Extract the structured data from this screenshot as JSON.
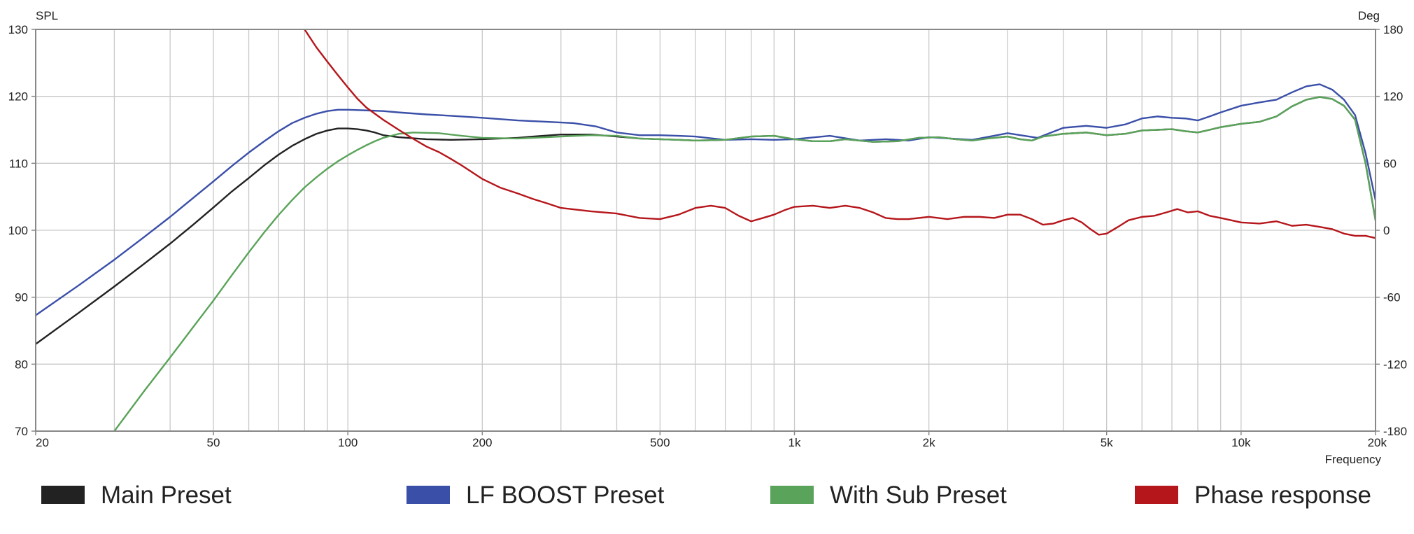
{
  "chart_data": {
    "type": "line",
    "title": "",
    "xlabel": "Frequency",
    "ylabel": "SPL",
    "y2label": "Deg",
    "x_scale": "log",
    "xlim": [
      20,
      20000
    ],
    "ylim": [
      70,
      130
    ],
    "y2lim": [
      -180,
      180
    ],
    "grid": true,
    "legend_position": "bottom",
    "x_ticks": [
      {
        "value": 20,
        "label": "20"
      },
      {
        "value": 50,
        "label": "50"
      },
      {
        "value": 100,
        "label": "100"
      },
      {
        "value": 200,
        "label": "200"
      },
      {
        "value": 500,
        "label": "500"
      },
      {
        "value": 1000,
        "label": "1k"
      },
      {
        "value": 2000,
        "label": "2k"
      },
      {
        "value": 5000,
        "label": "5k"
      },
      {
        "value": 10000,
        "label": "10k"
      },
      {
        "value": 20000,
        "label": "20k"
      }
    ],
    "y_ticks": [
      {
        "value": 70,
        "label": "70"
      },
      {
        "value": 80,
        "label": "80"
      },
      {
        "value": 90,
        "label": "90"
      },
      {
        "value": 100,
        "label": "100"
      },
      {
        "value": 110,
        "label": "110"
      },
      {
        "value": 120,
        "label": "120"
      },
      {
        "value": 130,
        "label": "130"
      }
    ],
    "y2_ticks": [
      {
        "value": -180,
        "label": "-180"
      },
      {
        "value": -120,
        "label": "-120"
      },
      {
        "value": -60,
        "label": "-60"
      },
      {
        "value": 0,
        "label": "0"
      },
      {
        "value": 60,
        "label": "60"
      },
      {
        "value": 120,
        "label": "120"
      },
      {
        "value": 180,
        "label": "180"
      }
    ],
    "series": [
      {
        "name": "Main Preset",
        "color": "#222222",
        "axis": "left",
        "points": [
          [
            20,
            83.0
          ],
          [
            25,
            87.7
          ],
          [
            30,
            91.6
          ],
          [
            35,
            95.0
          ],
          [
            40,
            98.0
          ],
          [
            45,
            100.8
          ],
          [
            50,
            103.4
          ],
          [
            55,
            105.8
          ],
          [
            60,
            107.8
          ],
          [
            65,
            109.7
          ],
          [
            70,
            111.3
          ],
          [
            75,
            112.6
          ],
          [
            80,
            113.6
          ],
          [
            85,
            114.4
          ],
          [
            90,
            114.9
          ],
          [
            95,
            115.2
          ],
          [
            100,
            115.2
          ],
          [
            105,
            115.1
          ],
          [
            110,
            114.9
          ],
          [
            115,
            114.6
          ],
          [
            120,
            114.2
          ],
          [
            130,
            113.9
          ],
          [
            150,
            113.6
          ],
          [
            170,
            113.5
          ],
          [
            200,
            113.6
          ],
          [
            240,
            113.8
          ],
          [
            260,
            114.0
          ],
          [
            300,
            114.3
          ],
          [
            350,
            114.3
          ],
          [
            400,
            114.0
          ],
          [
            450,
            113.7
          ],
          [
            500,
            113.6
          ],
          [
            550,
            113.5
          ],
          [
            600,
            113.4
          ],
          [
            700,
            113.5
          ],
          [
            800,
            114.0
          ],
          [
            900,
            114.1
          ],
          [
            1000,
            113.6
          ],
          [
            1100,
            113.3
          ],
          [
            1200,
            113.3
          ],
          [
            1300,
            113.6
          ],
          [
            1500,
            113.2
          ],
          [
            1700,
            113.3
          ],
          [
            1900,
            113.8
          ],
          [
            2100,
            113.9
          ],
          [
            2300,
            113.6
          ],
          [
            2500,
            113.4
          ],
          [
            2700,
            113.7
          ],
          [
            3000,
            114.0
          ],
          [
            3200,
            113.6
          ],
          [
            3400,
            113.4
          ],
          [
            3600,
            114.0
          ],
          [
            4000,
            114.4
          ],
          [
            4500,
            114.6
          ],
          [
            5000,
            114.2
          ],
          [
            5500,
            114.4
          ],
          [
            6000,
            114.9
          ],
          [
            6500,
            115.0
          ],
          [
            7000,
            115.1
          ],
          [
            7500,
            114.8
          ],
          [
            8000,
            114.6
          ],
          [
            8500,
            115.0
          ],
          [
            9000,
            115.4
          ],
          [
            10000,
            115.9
          ],
          [
            11000,
            116.2
          ],
          [
            12000,
            117.0
          ],
          [
            13000,
            118.5
          ],
          [
            14000,
            119.5
          ],
          [
            15000,
            119.9
          ],
          [
            16000,
            119.6
          ],
          [
            17000,
            118.6
          ],
          [
            18000,
            116.5
          ],
          [
            19000,
            110.0
          ],
          [
            20000,
            101.5
          ]
        ]
      },
      {
        "name": "LF BOOST Preset",
        "color": "#3a4fa8",
        "axis": "left",
        "points": [
          [
            20,
            87.3
          ],
          [
            25,
            91.8
          ],
          [
            30,
            95.6
          ],
          [
            35,
            99.0
          ],
          [
            40,
            102.0
          ],
          [
            45,
            104.8
          ],
          [
            50,
            107.3
          ],
          [
            55,
            109.6
          ],
          [
            60,
            111.6
          ],
          [
            65,
            113.3
          ],
          [
            70,
            114.8
          ],
          [
            75,
            116.0
          ],
          [
            80,
            116.8
          ],
          [
            85,
            117.4
          ],
          [
            90,
            117.8
          ],
          [
            95,
            118.0
          ],
          [
            100,
            118.0
          ],
          [
            110,
            117.9
          ],
          [
            120,
            117.8
          ],
          [
            130,
            117.6
          ],
          [
            150,
            117.3
          ],
          [
            170,
            117.1
          ],
          [
            200,
            116.8
          ],
          [
            240,
            116.4
          ],
          [
            280,
            116.2
          ],
          [
            320,
            116.0
          ],
          [
            360,
            115.5
          ],
          [
            400,
            114.6
          ],
          [
            450,
            114.2
          ],
          [
            500,
            114.2
          ],
          [
            550,
            114.1
          ],
          [
            600,
            114.0
          ],
          [
            700,
            113.5
          ],
          [
            800,
            113.6
          ],
          [
            900,
            113.5
          ],
          [
            1000,
            113.6
          ],
          [
            1200,
            114.1
          ],
          [
            1400,
            113.4
          ],
          [
            1600,
            113.6
          ],
          [
            1800,
            113.4
          ],
          [
            2000,
            113.9
          ],
          [
            2500,
            113.5
          ],
          [
            3000,
            114.5
          ],
          [
            3500,
            113.8
          ],
          [
            4000,
            115.3
          ],
          [
            4500,
            115.6
          ],
          [
            5000,
            115.3
          ],
          [
            5500,
            115.8
          ],
          [
            6000,
            116.7
          ],
          [
            6500,
            117.0
          ],
          [
            7000,
            116.8
          ],
          [
            7500,
            116.7
          ],
          [
            8000,
            116.4
          ],
          [
            8500,
            117.0
          ],
          [
            9000,
            117.6
          ],
          [
            10000,
            118.6
          ],
          [
            11000,
            119.1
          ],
          [
            12000,
            119.5
          ],
          [
            13000,
            120.6
          ],
          [
            14000,
            121.5
          ],
          [
            15000,
            121.8
          ],
          [
            16000,
            121.0
          ],
          [
            17000,
            119.5
          ],
          [
            18000,
            117.2
          ],
          [
            19000,
            111.5
          ],
          [
            20000,
            104.5
          ]
        ]
      },
      {
        "name": "With Sub Preset",
        "color": "#5aa35a",
        "axis": "left",
        "points": [
          [
            30,
            70.0
          ],
          [
            35,
            76.0
          ],
          [
            40,
            81.0
          ],
          [
            45,
            85.5
          ],
          [
            50,
            89.5
          ],
          [
            55,
            93.3
          ],
          [
            60,
            96.7
          ],
          [
            65,
            99.7
          ],
          [
            70,
            102.3
          ],
          [
            75,
            104.5
          ],
          [
            80,
            106.4
          ],
          [
            85,
            107.9
          ],
          [
            90,
            109.2
          ],
          [
            95,
            110.3
          ],
          [
            100,
            111.2
          ],
          [
            105,
            112.0
          ],
          [
            110,
            112.7
          ],
          [
            115,
            113.3
          ],
          [
            120,
            113.8
          ],
          [
            130,
            114.4
          ],
          [
            140,
            114.6
          ],
          [
            160,
            114.5
          ],
          [
            180,
            114.1
          ],
          [
            200,
            113.8
          ],
          [
            240,
            113.7
          ],
          [
            260,
            113.8
          ],
          [
            300,
            114.0
          ],
          [
            350,
            114.2
          ],
          [
            400,
            114.1
          ],
          [
            450,
            113.7
          ],
          [
            500,
            113.6
          ],
          [
            550,
            113.5
          ],
          [
            600,
            113.4
          ],
          [
            700,
            113.5
          ],
          [
            800,
            114.0
          ],
          [
            900,
            114.1
          ],
          [
            1000,
            113.6
          ],
          [
            1100,
            113.3
          ],
          [
            1200,
            113.3
          ],
          [
            1300,
            113.6
          ],
          [
            1500,
            113.2
          ],
          [
            1700,
            113.3
          ],
          [
            1900,
            113.8
          ],
          [
            2100,
            113.9
          ],
          [
            2300,
            113.6
          ],
          [
            2500,
            113.4
          ],
          [
            2700,
            113.7
          ],
          [
            3000,
            114.0
          ],
          [
            3200,
            113.6
          ],
          [
            3400,
            113.4
          ],
          [
            3600,
            114.0
          ],
          [
            4000,
            114.4
          ],
          [
            4500,
            114.6
          ],
          [
            5000,
            114.2
          ],
          [
            5500,
            114.4
          ],
          [
            6000,
            114.9
          ],
          [
            6500,
            115.0
          ],
          [
            7000,
            115.1
          ],
          [
            7500,
            114.8
          ],
          [
            8000,
            114.6
          ],
          [
            8500,
            115.0
          ],
          [
            9000,
            115.4
          ],
          [
            10000,
            115.9
          ],
          [
            11000,
            116.2
          ],
          [
            12000,
            117.0
          ],
          [
            13000,
            118.5
          ],
          [
            14000,
            119.5
          ],
          [
            15000,
            119.9
          ],
          [
            16000,
            119.6
          ],
          [
            17000,
            118.6
          ],
          [
            18000,
            116.5
          ],
          [
            19000,
            110.0
          ],
          [
            20000,
            101.5
          ]
        ]
      },
      {
        "name": "Phase response",
        "color": "#b5161b",
        "axis": "right",
        "points": [
          [
            80,
            180
          ],
          [
            85,
            164
          ],
          [
            90,
            151
          ],
          [
            95,
            139
          ],
          [
            100,
            128
          ],
          [
            105,
            118
          ],
          [
            110,
            110
          ],
          [
            120,
            99
          ],
          [
            130,
            90
          ],
          [
            140,
            82
          ],
          [
            150,
            75
          ],
          [
            160,
            70
          ],
          [
            170,
            64
          ],
          [
            180,
            58
          ],
          [
            200,
            46
          ],
          [
            220,
            38
          ],
          [
            240,
            33
          ],
          [
            260,
            28
          ],
          [
            280,
            24
          ],
          [
            300,
            20
          ],
          [
            350,
            17
          ],
          [
            400,
            15
          ],
          [
            450,
            11
          ],
          [
            500,
            10
          ],
          [
            550,
            14
          ],
          [
            600,
            20
          ],
          [
            650,
            22
          ],
          [
            700,
            20
          ],
          [
            750,
            13
          ],
          [
            800,
            8
          ],
          [
            850,
            11
          ],
          [
            900,
            14
          ],
          [
            950,
            18
          ],
          [
            1000,
            21
          ],
          [
            1100,
            22
          ],
          [
            1200,
            20
          ],
          [
            1300,
            22
          ],
          [
            1400,
            20
          ],
          [
            1500,
            16
          ],
          [
            1600,
            11
          ],
          [
            1700,
            10
          ],
          [
            1800,
            10
          ],
          [
            2000,
            12
          ],
          [
            2200,
            10
          ],
          [
            2400,
            12
          ],
          [
            2600,
            12
          ],
          [
            2800,
            11
          ],
          [
            3000,
            14
          ],
          [
            3200,
            14
          ],
          [
            3400,
            10
          ],
          [
            3600,
            5
          ],
          [
            3800,
            6
          ],
          [
            4000,
            9
          ],
          [
            4200,
            11
          ],
          [
            4400,
            7
          ],
          [
            4600,
            1
          ],
          [
            4800,
            -4
          ],
          [
            5000,
            -3
          ],
          [
            5300,
            3
          ],
          [
            5600,
            9
          ],
          [
            6000,
            12
          ],
          [
            6400,
            13
          ],
          [
            6800,
            16
          ],
          [
            7200,
            19
          ],
          [
            7600,
            16
          ],
          [
            8000,
            17
          ],
          [
            8500,
            13
          ],
          [
            9000,
            11
          ],
          [
            9500,
            9
          ],
          [
            10000,
            7
          ],
          [
            11000,
            6
          ],
          [
            12000,
            8
          ],
          [
            13000,
            4
          ],
          [
            14000,
            5
          ],
          [
            15000,
            3
          ],
          [
            16000,
            1
          ],
          [
            17000,
            -3
          ],
          [
            18000,
            -5
          ],
          [
            19000,
            -5
          ],
          [
            20000,
            -7
          ]
        ]
      }
    ]
  }
}
